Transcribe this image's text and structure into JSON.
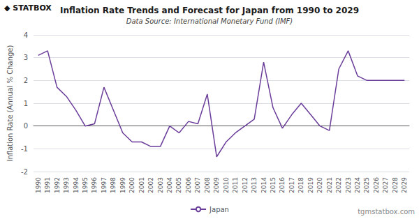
{
  "chart_data": {
    "type": "line",
    "title": "Inflation Rate Trends and Forecast for Japan from 1990 to 2029",
    "subtitle": "Data Source: International Monetary Fund (IMF)",
    "ylabel": "Inflation Rate (Annual % Change)",
    "annotations": [
      "◆ STATBOX",
      "tgmstatbox.com"
    ],
    "x": [
      1990,
      1991,
      1992,
      1993,
      1994,
      1995,
      1996,
      1997,
      1998,
      1999,
      2000,
      2001,
      2002,
      2003,
      2004,
      2005,
      2006,
      2007,
      2008,
      2009,
      2010,
      2011,
      2012,
      2013,
      2014,
      2015,
      2016,
      2017,
      2018,
      2019,
      2020,
      2021,
      2022,
      2023,
      2024,
      2025,
      2026,
      2027,
      2028,
      2029
    ],
    "xlim": [
      1989.5,
      2029.5
    ],
    "xticks": [
      1990,
      1991,
      1992,
      1993,
      1994,
      1995,
      1996,
      1997,
      1998,
      1999,
      2000,
      2001,
      2002,
      2003,
      2004,
      2005,
      2006,
      2007,
      2008,
      2009,
      2010,
      2011,
      2012,
      2013,
      2014,
      2015,
      2016,
      2017,
      2018,
      2019,
      2020,
      2021,
      2022,
      2023,
      2024,
      2025,
      2026,
      2027,
      2028,
      2029
    ],
    "series": [
      {
        "name": "Japan",
        "color": "#6a3d9a",
        "values": [
          3.1,
          3.3,
          1.7,
          1.3,
          0.7,
          0.0,
          0.1,
          1.7,
          0.7,
          -0.3,
          -0.7,
          -0.7,
          -0.9,
          -0.9,
          0.0,
          -0.3,
          0.2,
          0.1,
          1.4,
          -1.35,
          -0.7,
          -0.3,
          0.0,
          0.3,
          2.8,
          0.8,
          -0.1,
          0.5,
          1.0,
          0.5,
          0.0,
          -0.2,
          2.5,
          3.3,
          2.2,
          2.0,
          2.0,
          2.0,
          2.0,
          2.0
        ]
      }
    ],
    "ylim": [
      -2,
      4
    ],
    "yticks": [
      -2,
      -1,
      0,
      1,
      2,
      3,
      4
    ],
    "grid": true,
    "legend": "bottom"
  }
}
